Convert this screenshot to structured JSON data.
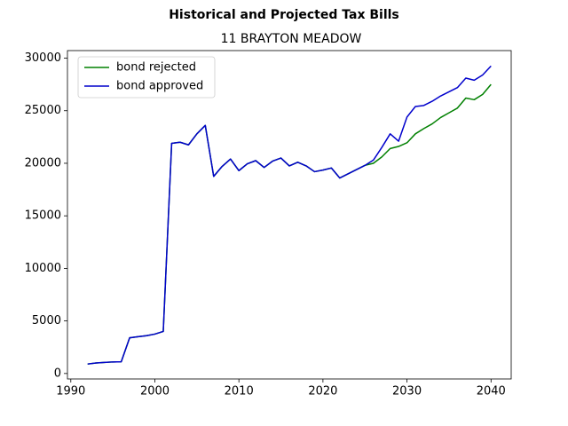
{
  "chart_data": {
    "type": "line",
    "title": "Historical and Projected Tax Bills",
    "subtitle": "11 BRAYTON MEADOW",
    "x": [
      1992,
      1993,
      1994,
      1995,
      1996,
      1997,
      1998,
      1999,
      2000,
      2001,
      2002,
      2003,
      2004,
      2005,
      2006,
      2007,
      2008,
      2009,
      2010,
      2011,
      2012,
      2013,
      2014,
      2015,
      2016,
      2017,
      2018,
      2019,
      2020,
      2021,
      2022,
      2023,
      2024,
      2025,
      2026,
      2027,
      2028,
      2029,
      2030,
      2031,
      2032,
      2033,
      2034,
      2035,
      2036,
      2037,
      2038,
      2039,
      2040
    ],
    "series": [
      {
        "name": "bond rejected",
        "color": "#008000",
        "values": [
          900,
          1000,
          1050,
          1100,
          1120,
          3400,
          3500,
          3600,
          3750,
          4000,
          21900,
          22000,
          21750,
          22800,
          23600,
          18750,
          19700,
          20400,
          19300,
          19950,
          20250,
          19600,
          20200,
          20500,
          19750,
          20100,
          19750,
          19200,
          19350,
          19550,
          18600,
          19000,
          19400,
          19800,
          20000,
          20600,
          21400,
          21600,
          21950,
          22800,
          23300,
          23750,
          24350,
          24800,
          25250,
          26200,
          26050,
          26550,
          27500
        ]
      },
      {
        "name": "bond approved",
        "color": "#0000cc",
        "values": [
          900,
          1000,
          1050,
          1100,
          1120,
          3400,
          3500,
          3600,
          3750,
          4000,
          21900,
          22000,
          21750,
          22800,
          23600,
          18750,
          19700,
          20400,
          19300,
          19950,
          20250,
          19600,
          20200,
          20500,
          19750,
          20100,
          19750,
          19200,
          19350,
          19550,
          18600,
          19000,
          19400,
          19800,
          20300,
          21500,
          22800,
          22100,
          24400,
          25400,
          25500,
          25900,
          26400,
          26800,
          27200,
          28100,
          27900,
          28400,
          29250
        ]
      }
    ],
    "xlim": [
      1989.6,
      2042.4
    ],
    "xticks": [
      1990,
      2000,
      2010,
      2020,
      2030,
      2040
    ],
    "ylim": [
      -520,
      30720
    ],
    "yticks": [
      0,
      5000,
      10000,
      15000,
      20000,
      25000,
      30000
    ],
    "legend": "upper left",
    "grid": false
  }
}
